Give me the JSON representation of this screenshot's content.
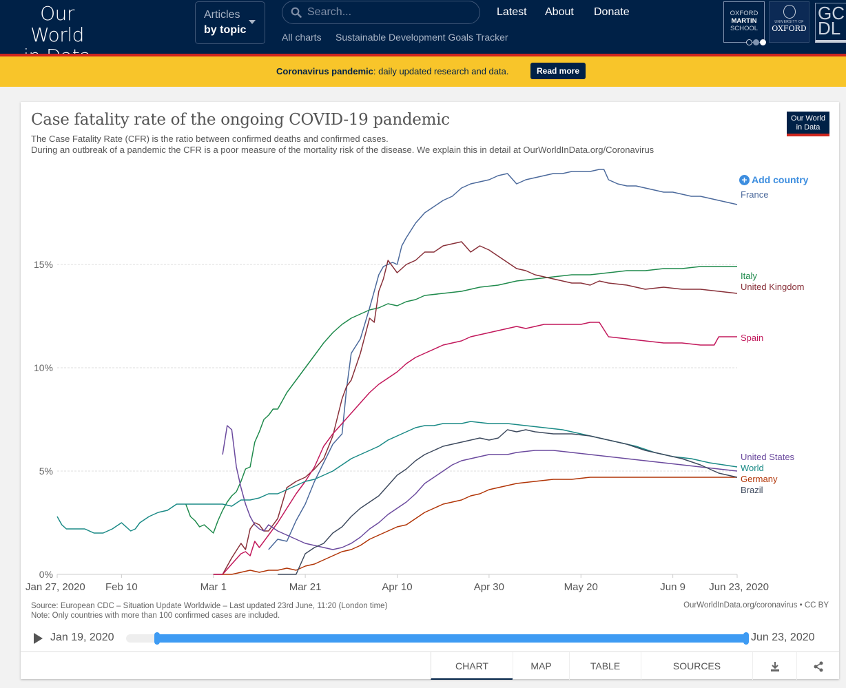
{
  "site": {
    "logo_line1": "Our World",
    "logo_line2": "in Data",
    "articles_label": "Articles",
    "articles_sub": "by topic",
    "search_placeholder": "Search...",
    "nav": [
      "Latest",
      "About",
      "Donate"
    ],
    "subnav": [
      "All charts",
      "Sustainable Development Goals Tracker"
    ],
    "partners": {
      "oxford_martin": [
        "OXFORD",
        "MARTIN",
        "SCHOOL"
      ],
      "university_small": "UNIVERSITY OF",
      "university": "OXFORD",
      "gcdl": [
        "GC",
        "DL"
      ]
    }
  },
  "banner": {
    "bold": "Coronavirus pandemic",
    "text": ": daily updated research and data.",
    "button": "Read more"
  },
  "colors": {
    "brand_navy": "#002147",
    "brand_red": "#ce261e",
    "banner_yellow": "#f8c52a",
    "accent_blue": "#3e9bf3"
  },
  "chart": {
    "badge_line1": "Our World",
    "badge_line2": "in Data",
    "add_country": "Add country",
    "source": "Source: European CDC – Situation Update Worldwide – Last updated 23rd June, 11:20 (London time)",
    "note": "Note: Only countries with more than 100 confirmed cases are included.",
    "license": "OurWorldInData.org/coronavirus • CC BY",
    "timeline_start": "Jan 19, 2020",
    "timeline_end": "Jun 23, 2020",
    "timeline_range": [
      0.05,
      1.0
    ],
    "tabs": [
      "CHART",
      "MAP",
      "TABLE",
      "SOURCES"
    ],
    "active_tab": "CHART"
  },
  "chart_data": {
    "type": "line",
    "title": "Case fatality rate of the ongoing COVID-19 pandemic",
    "subtitle_line1": "The Case Fatality Rate (CFR) is the ratio between confirmed deaths and confirmed cases.",
    "subtitle_line2": "During an outbreak of a pandemic the CFR is a poor measure of the mortality risk of the disease. We explain this in detail at OurWorldInData.org/Coronavirus",
    "xlabel": "",
    "ylabel": "",
    "x_unit": "days since Jan 27, 2020",
    "xlim": [
      0,
      148
    ],
    "ylim": [
      0,
      19.5
    ],
    "y_ticks": [
      0,
      5,
      10,
      15
    ],
    "y_tick_labels": [
      "0%",
      "5%",
      "10%",
      "15%"
    ],
    "x_ticks": [
      0,
      14,
      34,
      54,
      74,
      94,
      114,
      134,
      148
    ],
    "x_tick_labels": [
      "Jan 27, 2020",
      "Feb 10",
      "Mar 1",
      "Mar 21",
      "Apr 10",
      "Apr 30",
      "May 20",
      "Jun 9",
      "Jun 23, 2020"
    ],
    "grid": true,
    "legend": "right (inline end labels)",
    "series": [
      {
        "name": "France",
        "color": "#4c6a9c",
        "x": [
          46,
          48,
          50,
          52,
          54,
          56,
          58,
          60,
          62,
          63,
          64,
          66,
          68,
          69,
          70,
          71,
          72,
          73,
          74,
          75,
          76,
          78,
          80,
          82,
          84,
          86,
          88,
          90,
          92,
          94,
          96,
          98,
          100,
          101,
          102,
          104,
          106,
          108,
          110,
          112,
          114,
          116,
          118,
          119,
          120,
          122,
          124,
          126,
          128,
          130,
          132,
          134,
          136,
          138,
          140,
          142,
          144,
          146,
          148
        ],
        "y": [
          1.2,
          1.7,
          1.6,
          2.6,
          3.4,
          4.5,
          5.4,
          6.3,
          6.8,
          9.0,
          10.7,
          11.4,
          12.9,
          13.7,
          14.5,
          14.9,
          15.0,
          15.1,
          15.0,
          15.9,
          16.3,
          17.0,
          17.5,
          17.8,
          18.1,
          18.3,
          18.7,
          18.9,
          19.0,
          19.1,
          19.3,
          19.4,
          18.9,
          19.0,
          19.1,
          19.2,
          19.3,
          19.4,
          19.4,
          19.5,
          19.5,
          19.5,
          19.6,
          19.6,
          19.1,
          18.9,
          18.8,
          18.8,
          18.7,
          18.6,
          18.5,
          18.5,
          18.4,
          18.3,
          18.3,
          18.2,
          18.1,
          18.0,
          17.9
        ]
      },
      {
        "name": "Italy",
        "color": "#1f8a4c",
        "x": [
          28,
          29,
          30,
          31,
          32,
          33,
          34,
          35,
          36,
          37,
          38,
          39,
          40,
          41,
          42,
          43,
          44,
          45,
          46,
          47,
          48,
          49,
          50,
          52,
          54,
          56,
          58,
          60,
          62,
          64,
          66,
          68,
          70,
          72,
          74,
          76,
          78,
          80,
          84,
          88,
          92,
          96,
          100,
          104,
          108,
          112,
          116,
          120,
          124,
          128,
          132,
          136,
          140,
          144,
          148
        ],
        "y": [
          3.4,
          2.8,
          2.6,
          2.3,
          2.4,
          2.2,
          2.0,
          2.6,
          3.1,
          3.5,
          3.8,
          4.0,
          4.5,
          5.1,
          5.2,
          6.4,
          6.9,
          7.5,
          7.7,
          8.0,
          8.0,
          8.4,
          8.8,
          9.4,
          10.0,
          10.6,
          11.2,
          11.7,
          12.1,
          12.4,
          12.6,
          12.8,
          12.9,
          13.1,
          13.0,
          13.2,
          13.3,
          13.5,
          13.6,
          13.7,
          13.9,
          14.0,
          14.2,
          14.3,
          14.4,
          14.5,
          14.5,
          14.6,
          14.7,
          14.7,
          14.8,
          14.8,
          14.9,
          14.9,
          14.9
        ]
      },
      {
        "name": "United Kingdom",
        "color": "#883039",
        "x": [
          34,
          36,
          38,
          40,
          41,
          42,
          43,
          44,
          45,
          46,
          48,
          50,
          52,
          54,
          56,
          58,
          60,
          62,
          63,
          64,
          66,
          68,
          69,
          70,
          71,
          72,
          74,
          76,
          78,
          80,
          82,
          84,
          86,
          88,
          90,
          92,
          94,
          96,
          98,
          100,
          102,
          104,
          106,
          108,
          110,
          112,
          114,
          116,
          118,
          120,
          124,
          128,
          132,
          136,
          140,
          144,
          148
        ],
        "y": [
          0,
          0,
          0.8,
          1.5,
          1.2,
          2.2,
          2.5,
          2.4,
          2.1,
          2.1,
          2.7,
          4.2,
          4.5,
          4.7,
          5.1,
          5.6,
          6.7,
          8.5,
          9.1,
          9.4,
          10.7,
          12.4,
          12.2,
          13.7,
          14.3,
          15.2,
          14.6,
          15.0,
          15.2,
          15.6,
          15.6,
          15.9,
          16.0,
          16.1,
          15.6,
          15.9,
          15.7,
          15.4,
          15.1,
          14.8,
          14.7,
          14.5,
          14.4,
          14.3,
          14.2,
          14.1,
          14.1,
          14.0,
          14.2,
          14.1,
          14.0,
          13.8,
          13.9,
          13.8,
          13.8,
          13.7,
          13.6
        ]
      },
      {
        "name": "Spain",
        "color": "#c2185b",
        "x": [
          34,
          36,
          38,
          40,
          41,
          42,
          43,
          44,
          46,
          48,
          50,
          52,
          54,
          56,
          58,
          60,
          62,
          64,
          66,
          68,
          70,
          72,
          74,
          76,
          78,
          80,
          82,
          84,
          86,
          88,
          90,
          92,
          94,
          96,
          98,
          100,
          102,
          104,
          106,
          108,
          110,
          112,
          114,
          116,
          117,
          118,
          120,
          124,
          128,
          132,
          136,
          140,
          143,
          144,
          146,
          148
        ],
        "y": [
          0,
          0,
          0.5,
          1.0,
          1.1,
          0.9,
          1.6,
          1.3,
          1.9,
          2.5,
          3.2,
          3.9,
          4.5,
          5.2,
          6.2,
          6.8,
          7.3,
          7.8,
          8.3,
          8.8,
          9.2,
          9.5,
          9.8,
          10.2,
          10.5,
          10.7,
          10.9,
          11.1,
          11.2,
          11.3,
          11.5,
          11.6,
          11.7,
          11.8,
          11.9,
          12.0,
          11.9,
          12.0,
          12.1,
          12.1,
          12.1,
          12.1,
          12.1,
          12.2,
          12.2,
          12.2,
          11.5,
          11.4,
          11.3,
          11.2,
          11.2,
          11.1,
          11.1,
          11.5,
          11.5,
          11.5
        ]
      },
      {
        "name": "United States",
        "color": "#6b4a9e",
        "x": [
          36,
          37,
          38,
          39,
          40,
          41,
          42,
          43,
          44,
          45,
          46,
          48,
          50,
          52,
          54,
          56,
          58,
          60,
          62,
          64,
          66,
          68,
          70,
          72,
          74,
          76,
          78,
          80,
          82,
          84,
          86,
          88,
          90,
          92,
          94,
          96,
          98,
          100,
          104,
          108,
          112,
          116,
          120,
          124,
          128,
          132,
          136,
          140,
          144,
          148
        ],
        "y": [
          5.8,
          7.2,
          7.0,
          5.2,
          4.2,
          3.4,
          2.8,
          2.4,
          2.2,
          2.1,
          2.4,
          2.1,
          1.9,
          1.7,
          1.5,
          1.4,
          1.3,
          1.2,
          1.3,
          1.5,
          1.8,
          2.2,
          2.5,
          2.9,
          3.2,
          3.5,
          3.9,
          4.4,
          4.7,
          5.0,
          5.3,
          5.5,
          5.6,
          5.7,
          5.8,
          5.8,
          5.8,
          5.9,
          6.0,
          6.0,
          5.9,
          5.8,
          5.7,
          5.6,
          5.5,
          5.4,
          5.3,
          5.2,
          5.1,
          5.0
        ]
      },
      {
        "name": "World",
        "color": "#1a8a86",
        "x": [
          0,
          1,
          2,
          4,
          6,
          8,
          10,
          12,
          14,
          16,
          17,
          18,
          20,
          22,
          24,
          26,
          28,
          30,
          32,
          34,
          36,
          38,
          40,
          42,
          44,
          46,
          48,
          50,
          52,
          54,
          56,
          58,
          60,
          62,
          64,
          66,
          68,
          70,
          72,
          74,
          76,
          78,
          80,
          82,
          84,
          86,
          88,
          90,
          94,
          98,
          102,
          106,
          110,
          114,
          118,
          122,
          126,
          130,
          134,
          138,
          142,
          148
        ],
        "y": [
          2.8,
          2.4,
          2.2,
          2.2,
          2.2,
          2.0,
          2.0,
          2.2,
          2.5,
          2.1,
          2.2,
          2.5,
          2.8,
          3.0,
          3.1,
          3.4,
          3.4,
          3.4,
          3.4,
          3.4,
          3.4,
          3.3,
          3.6,
          3.6,
          3.7,
          3.9,
          3.9,
          4.1,
          4.3,
          4.5,
          4.6,
          4.8,
          5.0,
          5.3,
          5.6,
          5.8,
          6.0,
          6.2,
          6.5,
          6.7,
          6.9,
          7.1,
          7.2,
          7.2,
          7.3,
          7.3,
          7.3,
          7.4,
          7.3,
          7.3,
          7.2,
          7.1,
          7.0,
          6.8,
          6.6,
          6.4,
          6.2,
          5.9,
          5.7,
          5.6,
          5.4,
          5.2
        ]
      },
      {
        "name": "Germany",
        "color": "#b13507",
        "x": [
          36,
          38,
          40,
          42,
          44,
          46,
          48,
          50,
          52,
          54,
          56,
          58,
          60,
          62,
          64,
          66,
          68,
          70,
          72,
          74,
          76,
          78,
          80,
          82,
          84,
          86,
          88,
          90,
          92,
          94,
          96,
          98,
          100,
          104,
          108,
          112,
          116,
          120,
          124,
          128,
          132,
          136,
          140,
          144,
          148
        ],
        "y": [
          0,
          0,
          0.1,
          0.2,
          0.1,
          0.2,
          0.2,
          0.3,
          0.2,
          0.4,
          0.5,
          0.7,
          0.9,
          1.1,
          1.2,
          1.4,
          1.7,
          1.9,
          2.1,
          2.3,
          2.4,
          2.7,
          3.0,
          3.2,
          3.4,
          3.5,
          3.6,
          3.8,
          3.9,
          4.1,
          4.2,
          4.3,
          4.4,
          4.5,
          4.6,
          4.6,
          4.7,
          4.7,
          4.7,
          4.7,
          4.7,
          4.7,
          4.7,
          4.7,
          4.7
        ]
      },
      {
        "name": "Brazil",
        "color": "#3e4a5e",
        "x": [
          48,
          50,
          52,
          54,
          56,
          58,
          60,
          62,
          64,
          66,
          68,
          70,
          72,
          74,
          76,
          78,
          80,
          82,
          84,
          86,
          88,
          90,
          92,
          94,
          96,
          98,
          100,
          102,
          104,
          108,
          112,
          116,
          120,
          124,
          128,
          132,
          136,
          140,
          144,
          148
        ],
        "y": [
          0,
          0,
          0.0,
          1.0,
          1.3,
          1.5,
          2.0,
          2.3,
          2.8,
          3.2,
          3.5,
          3.8,
          4.3,
          4.8,
          5.1,
          5.5,
          5.8,
          6.0,
          6.2,
          6.3,
          6.4,
          6.5,
          6.6,
          6.5,
          6.6,
          7.0,
          6.9,
          7.0,
          6.9,
          6.8,
          6.8,
          6.7,
          6.5,
          6.3,
          6.0,
          5.8,
          5.6,
          5.3,
          4.9,
          4.7
        ]
      }
    ]
  }
}
